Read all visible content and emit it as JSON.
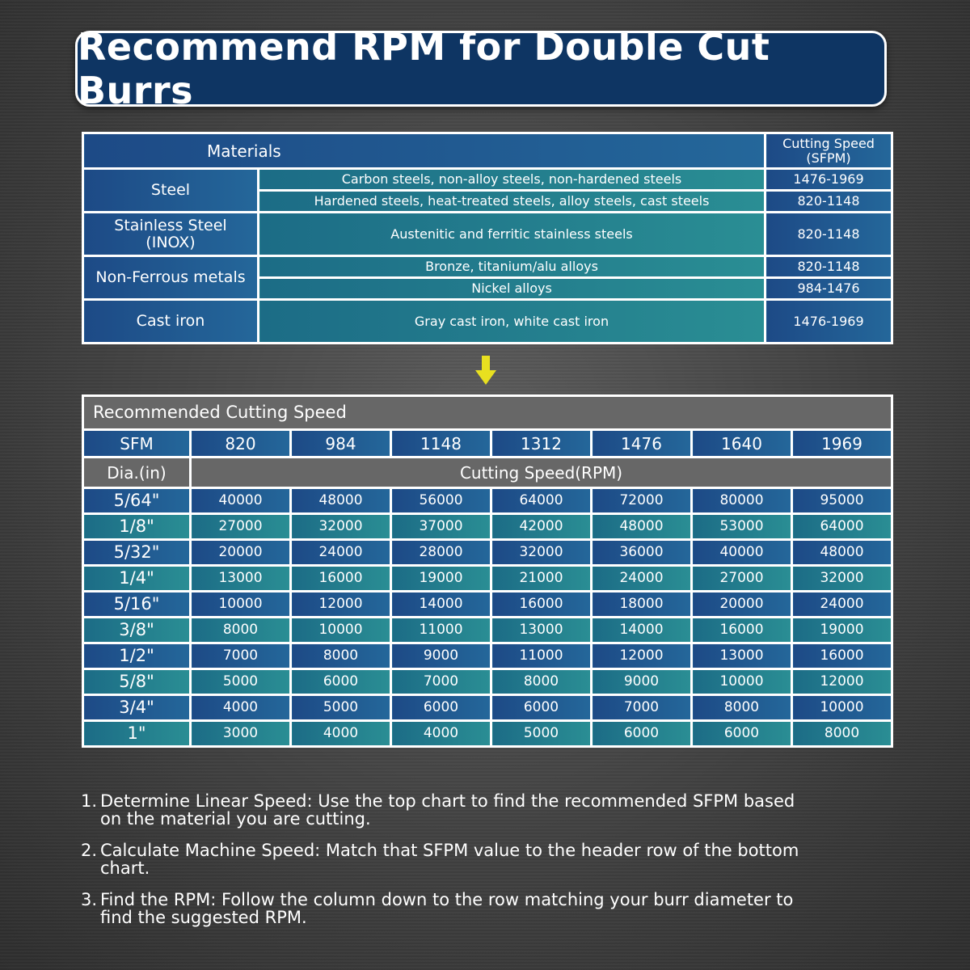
{
  "title": "Recommend RPM for Double Cut Burrs",
  "materials_table": {
    "materials_header": "Materials",
    "speed_header": "Cutting Speed (SFPM)",
    "groups": [
      {
        "name": "Steel",
        "rows": [
          {
            "description": "Carbon steels, non-alloy steels, non-hardened steels",
            "sfpm": "1476-1969"
          },
          {
            "description": "Hardened steels, heat-treated steels, alloy steels, cast steels",
            "sfpm": "820-1148"
          }
        ]
      },
      {
        "name": "Stainless Steel (INOX)",
        "rows": [
          {
            "description": "Austenitic and ferritic stainless steels",
            "sfpm": "820-1148"
          }
        ]
      },
      {
        "name": "Non-Ferrous metals",
        "rows": [
          {
            "description": "Bronze, titanium/alu alloys",
            "sfpm": "820-1148"
          },
          {
            "description": "Nickel alloys",
            "sfpm": "984-1476"
          }
        ]
      },
      {
        "name": "Cast iron",
        "rows": [
          {
            "description": "Gray cast iron, white cast iron",
            "sfpm": "1476-1969"
          }
        ]
      }
    ]
  },
  "speed_table": {
    "title": "Recommended Cutting Speed",
    "sfm_label": "SFM",
    "sfm": [
      820,
      984,
      1148,
      1312,
      1476,
      1640,
      1969
    ],
    "dia_label": "Dia.(in)",
    "rpm_label": "Cutting Speed(RPM)",
    "rows": [
      {
        "dia": "5/64\"",
        "rpm": [
          40000,
          48000,
          56000,
          64000,
          72000,
          80000,
          95000
        ]
      },
      {
        "dia": "1/8\"",
        "rpm": [
          27000,
          32000,
          37000,
          42000,
          48000,
          53000,
          64000
        ]
      },
      {
        "dia": "5/32\"",
        "rpm": [
          20000,
          24000,
          28000,
          32000,
          36000,
          40000,
          48000
        ]
      },
      {
        "dia": "1/4\"",
        "rpm": [
          13000,
          16000,
          19000,
          21000,
          24000,
          27000,
          32000
        ]
      },
      {
        "dia": "5/16\"",
        "rpm": [
          10000,
          12000,
          14000,
          16000,
          18000,
          20000,
          24000
        ]
      },
      {
        "dia": "3/8\"",
        "rpm": [
          8000,
          10000,
          11000,
          13000,
          14000,
          16000,
          19000
        ]
      },
      {
        "dia": "1/2\"",
        "rpm": [
          7000,
          8000,
          9000,
          11000,
          12000,
          13000,
          16000
        ]
      },
      {
        "dia": "5/8\"",
        "rpm": [
          5000,
          6000,
          7000,
          8000,
          9000,
          10000,
          12000
        ]
      },
      {
        "dia": "3/4\"",
        "rpm": [
          4000,
          5000,
          6000,
          6000,
          7000,
          8000,
          10000
        ]
      },
      {
        "dia": "1\"",
        "rpm": [
          3000,
          4000,
          4000,
          5000,
          6000,
          6000,
          8000
        ]
      }
    ]
  },
  "steps": [
    {
      "number": "1.",
      "text": "Determine Linear Speed: Use the top chart to find the recommended SFPM based on the material you are cutting."
    },
    {
      "number": "2.",
      "text": "Calculate Machine Speed: Match that SFPM value to the header row of the bottom chart."
    },
    {
      "number": "3.",
      "text": "Find the RPM: Follow the column down to the row matching your burr diameter to find the suggested RPM."
    }
  ]
}
